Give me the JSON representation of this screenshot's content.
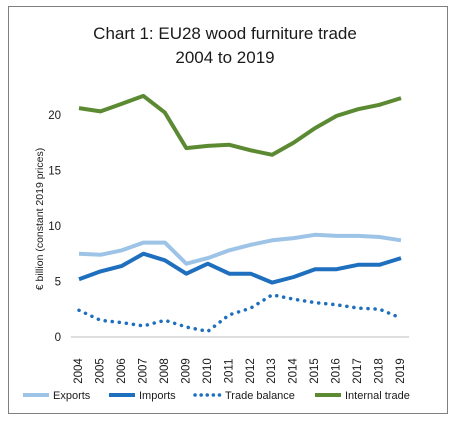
{
  "chart_data": {
    "type": "line",
    "title": "Chart 1: EU28 wood furniture trade",
    "subtitle": "2004 to 2019",
    "ylabel": "€ billion (constant 2019 prices)",
    "xlabel": "",
    "ylim": [
      0,
      22.5
    ],
    "yticks": [
      0,
      5,
      10,
      15,
      20
    ],
    "grid": false,
    "legend_position": "bottom",
    "categories": [
      "2004",
      "2005",
      "2006",
      "2007",
      "2008",
      "2009",
      "2010",
      "2011",
      "2012",
      "2013",
      "2014",
      "2015",
      "2016",
      "2017",
      "2018",
      "2019"
    ],
    "series": [
      {
        "name": "Exports",
        "color": "#9dc3e6",
        "style": "solid",
        "values": [
          7.5,
          7.4,
          7.8,
          8.5,
          8.5,
          6.6,
          7.1,
          7.8,
          8.3,
          8.7,
          8.9,
          9.2,
          9.1,
          9.1,
          9.0,
          8.7
        ]
      },
      {
        "name": "Imports",
        "color": "#1f6fbf",
        "style": "solid",
        "values": [
          5.2,
          5.9,
          6.4,
          7.5,
          6.9,
          5.7,
          6.6,
          5.7,
          5.7,
          4.9,
          5.4,
          6.1,
          6.1,
          6.5,
          6.5,
          7.1
        ]
      },
      {
        "name": "Trade balance",
        "color": "#1f6fbf",
        "style": "dotted",
        "values": [
          2.4,
          1.5,
          1.3,
          1.0,
          1.5,
          0.9,
          0.5,
          2.0,
          2.6,
          3.8,
          3.4,
          3.1,
          2.9,
          2.6,
          2.5,
          1.7
        ]
      },
      {
        "name": "Internal trade",
        "color": "#5b8a32",
        "style": "solid",
        "values": [
          20.6,
          20.3,
          21.0,
          21.7,
          20.2,
          17.0,
          17.2,
          17.3,
          16.8,
          16.4,
          17.5,
          18.8,
          19.9,
          20.5,
          20.9,
          21.5
        ]
      }
    ]
  }
}
